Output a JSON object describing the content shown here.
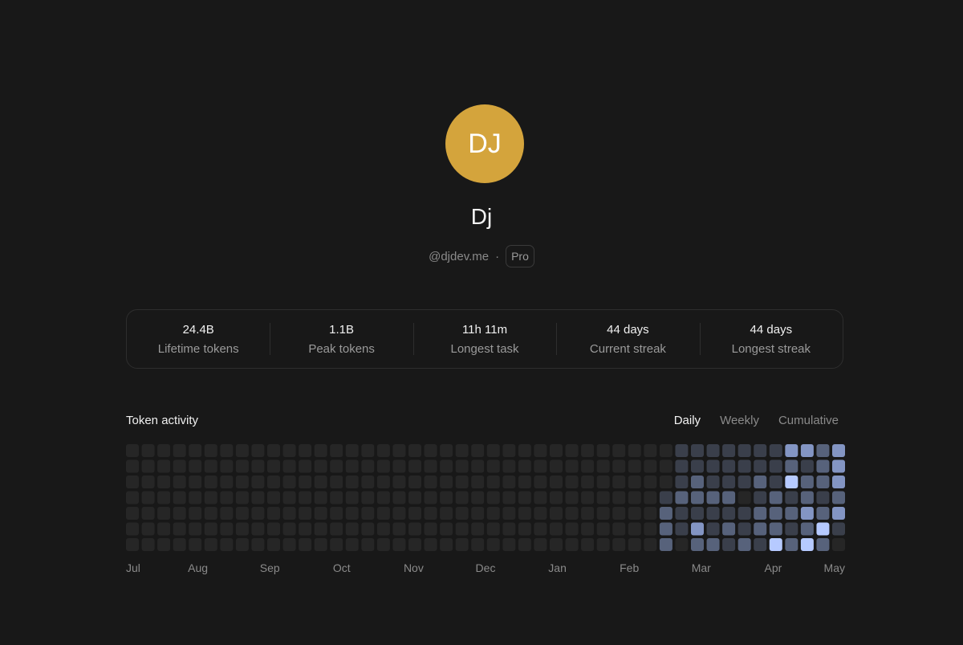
{
  "profile": {
    "initials": "DJ",
    "name": "Dj",
    "handle": "@djdev.me",
    "separator": "·",
    "badge": "Pro"
  },
  "stats": [
    {
      "value": "24.4B",
      "label": "Lifetime tokens"
    },
    {
      "value": "1.1B",
      "label": "Peak tokens"
    },
    {
      "value": "11h 11m",
      "label": "Longest task"
    },
    {
      "value": "44 days",
      "label": "Current streak"
    },
    {
      "value": "44 days",
      "label": "Longest streak"
    }
  ],
  "activity": {
    "title": "Token activity",
    "tabs": [
      "Daily",
      "Weekly",
      "Cumulative"
    ],
    "active_tab": 0,
    "months": [
      "Jul",
      "Aug",
      "Sep",
      "Oct",
      "Nov",
      "Dec",
      "Jan",
      "Feb",
      "Mar",
      "Apr",
      "May"
    ],
    "level_colors": [
      "#262626",
      "#3a3f4b",
      "#57627b",
      "#8395c3",
      "#b6caff"
    ],
    "levels": [
      [
        0,
        0,
        0,
        0,
        0,
        0,
        0,
        0,
        0,
        0,
        0,
        0,
        0,
        0,
        0,
        0,
        0,
        0,
        0,
        0,
        0,
        0,
        0,
        0,
        0,
        0,
        0,
        0,
        0,
        0,
        0,
        0,
        0,
        0,
        0,
        1,
        1,
        1,
        1,
        1,
        1,
        1,
        3,
        3,
        2,
        3
      ],
      [
        0,
        0,
        0,
        0,
        0,
        0,
        0,
        0,
        0,
        0,
        0,
        0,
        0,
        0,
        0,
        0,
        0,
        0,
        0,
        0,
        0,
        0,
        0,
        0,
        0,
        0,
        0,
        0,
        0,
        0,
        0,
        0,
        0,
        0,
        0,
        1,
        1,
        1,
        1,
        1,
        1,
        1,
        2,
        1,
        2,
        3
      ],
      [
        0,
        0,
        0,
        0,
        0,
        0,
        0,
        0,
        0,
        0,
        0,
        0,
        0,
        0,
        0,
        0,
        0,
        0,
        0,
        0,
        0,
        0,
        0,
        0,
        0,
        0,
        0,
        0,
        0,
        0,
        0,
        0,
        0,
        0,
        0,
        1,
        2,
        1,
        1,
        1,
        2,
        1,
        4,
        2,
        2,
        3
      ],
      [
        0,
        0,
        0,
        0,
        0,
        0,
        0,
        0,
        0,
        0,
        0,
        0,
        0,
        0,
        0,
        0,
        0,
        0,
        0,
        0,
        0,
        0,
        0,
        0,
        0,
        0,
        0,
        0,
        0,
        0,
        0,
        0,
        0,
        0,
        1,
        2,
        2,
        2,
        2,
        0,
        1,
        2,
        1,
        2,
        1,
        2
      ],
      [
        0,
        0,
        0,
        0,
        0,
        0,
        0,
        0,
        0,
        0,
        0,
        0,
        0,
        0,
        0,
        0,
        0,
        0,
        0,
        0,
        0,
        0,
        0,
        0,
        0,
        0,
        0,
        0,
        0,
        0,
        0,
        0,
        0,
        0,
        2,
        1,
        1,
        1,
        1,
        1,
        2,
        2,
        2,
        3,
        2,
        3
      ],
      [
        0,
        0,
        0,
        0,
        0,
        0,
        0,
        0,
        0,
        0,
        0,
        0,
        0,
        0,
        0,
        0,
        0,
        0,
        0,
        0,
        0,
        0,
        0,
        0,
        0,
        0,
        0,
        0,
        0,
        0,
        0,
        0,
        0,
        0,
        2,
        1,
        3,
        1,
        2,
        1,
        2,
        2,
        1,
        2,
        4,
        1
      ],
      [
        0,
        0,
        0,
        0,
        0,
        0,
        0,
        0,
        0,
        0,
        0,
        0,
        0,
        0,
        0,
        0,
        0,
        0,
        0,
        0,
        0,
        0,
        0,
        0,
        0,
        0,
        0,
        0,
        0,
        0,
        0,
        0,
        0,
        0,
        2,
        0,
        2,
        2,
        1,
        2,
        1,
        4,
        2,
        4,
        2,
        0
      ]
    ]
  }
}
